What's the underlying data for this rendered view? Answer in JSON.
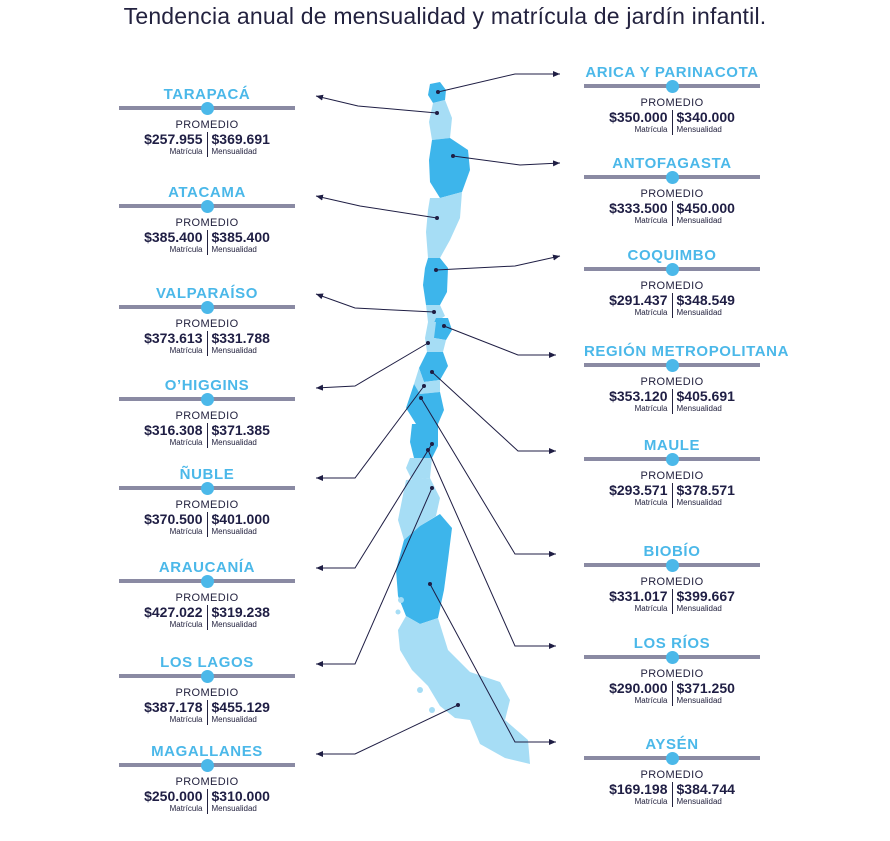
{
  "title": "Tendencia anual de mensualidad y matrícula de jardín infantil.",
  "labels": {
    "promedio": "PROMEDIO",
    "matricula": "Matrícula",
    "mensualidad": "Mensualidad"
  },
  "colors": {
    "accent": "#4bb8e9",
    "dark": "#1f1e44",
    "bar": "#8a8aa3",
    "map_dark": "#3db5eb",
    "map_light": "#a6ddf5"
  },
  "left_regions": [
    {
      "name": "TARAPACÁ",
      "matricula": "$257.955",
      "mensualidad": "$369.691"
    },
    {
      "name": "ATACAMA",
      "matricula": "$385.400",
      "mensualidad": "$385.400"
    },
    {
      "name": "VALPARAÍSO",
      "matricula": "$373.613",
      "mensualidad": "$331.788"
    },
    {
      "name": "O’HIGGINS",
      "matricula": "$316.308",
      "mensualidad": "$371.385"
    },
    {
      "name": "ÑUBLE",
      "matricula": "$370.500",
      "mensualidad": "$401.000"
    },
    {
      "name": "ARAUCANÍA",
      "matricula": "$427.022",
      "mensualidad": "$319.238"
    },
    {
      "name": "LOS LAGOS",
      "matricula": "$387.178",
      "mensualidad": "$455.129"
    },
    {
      "name": "MAGALLANES",
      "matricula": "$250.000",
      "mensualidad": "$310.000"
    }
  ],
  "right_regions": [
    {
      "name": "ARICA Y PARINACOTA",
      "matricula": "$350.000",
      "mensualidad": "$340.000"
    },
    {
      "name": "ANTOFAGASTA",
      "matricula": "$333.500",
      "mensualidad": "$450.000"
    },
    {
      "name": "COQUIMBO",
      "matricula": "$291.437",
      "mensualidad": "$348.549"
    },
    {
      "name": "REGIÓN METROPOLITANA",
      "matricula": "$353.120",
      "mensualidad": "$405.691"
    },
    {
      "name": "MAULE",
      "matricula": "$293.571",
      "mensualidad": "$378.571"
    },
    {
      "name": "BIOBÍO",
      "matricula": "$331.017",
      "mensualidad": "$399.667"
    },
    {
      "name": "LOS RÍOS",
      "matricula": "$290.000",
      "mensualidad": "$371.250"
    },
    {
      "name": "AYSÉN",
      "matricula": "$169.198",
      "mensualidad": "$384.744"
    }
  ]
}
